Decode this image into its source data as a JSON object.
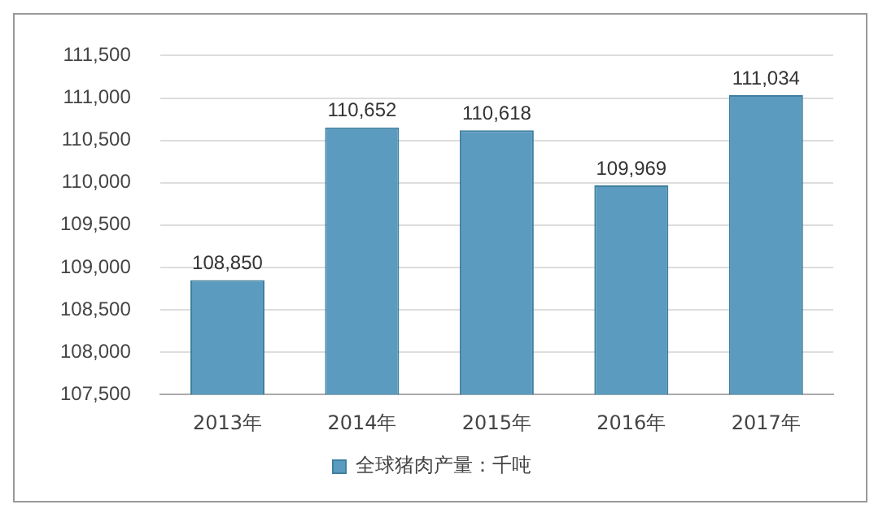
{
  "chart_data": {
    "type": "bar",
    "categories": [
      "2013年",
      "2014年",
      "2015年",
      "2016年",
      "2017年"
    ],
    "series": [
      {
        "name": "全球猪肉产量：千吨",
        "color": "#5a9bbf",
        "values": [
          108850,
          110652,
          110618,
          109969,
          111034
        ],
        "value_labels": [
          "108,850",
          "110,652",
          "110,618",
          "109,969",
          "111,034"
        ]
      }
    ],
    "ylim": [
      107500,
      111500
    ],
    "yticks": [
      {
        "value": 107500,
        "label": "107,500"
      },
      {
        "value": 108000,
        "label": "108,000"
      },
      {
        "value": 108500,
        "label": "108,500"
      },
      {
        "value": 109000,
        "label": "109,000"
      },
      {
        "value": 109500,
        "label": "109,500"
      },
      {
        "value": 110000,
        "label": "110,000"
      },
      {
        "value": 110500,
        "label": "110,500"
      },
      {
        "value": 111000,
        "label": "111,000"
      },
      {
        "value": 111500,
        "label": "111,500"
      }
    ],
    "grid": "y",
    "legend": "bottom"
  }
}
